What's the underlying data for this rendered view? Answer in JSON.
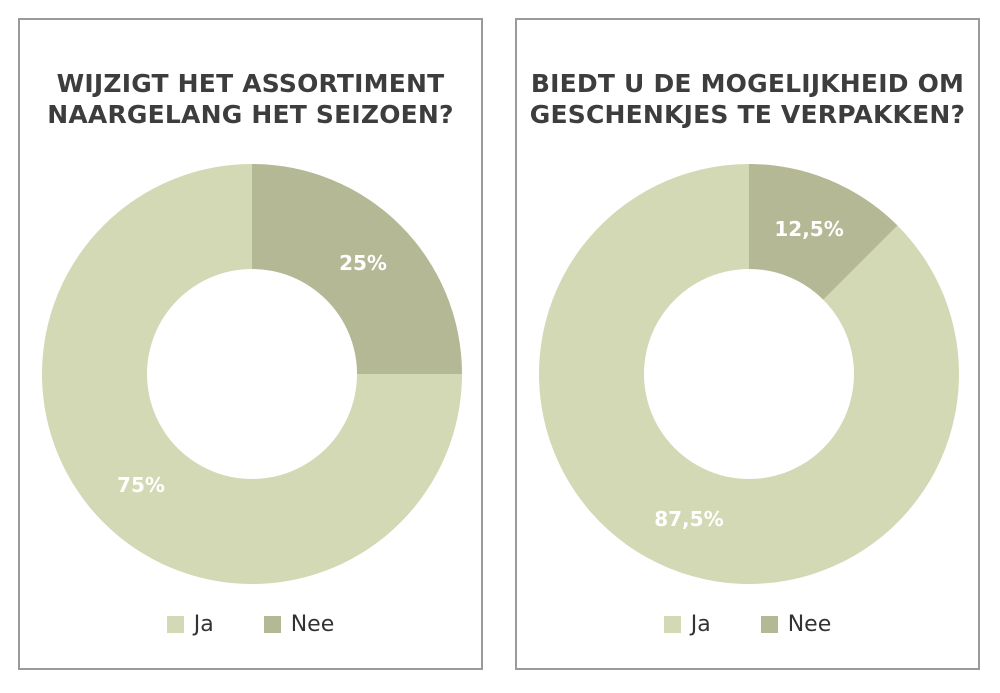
{
  "chart_data": [
    {
      "type": "pie",
      "title": [
        "WIJZIGT HET ASSORTIMENT",
        "NAARGELANG HET SEIZOEN?"
      ],
      "categories": [
        "Ja",
        "Nee"
      ],
      "values": [
        75,
        25
      ],
      "value_labels": [
        "75%",
        "25%"
      ],
      "colors": [
        "#d3d8b5",
        "#b4b895"
      ],
      "legend_position": "bottom",
      "donut": true
    },
    {
      "type": "pie",
      "title": [
        "BIEDT U DE MOGELIJKHEID OM",
        "GESCHENKJES TE VERPAKKEN?"
      ],
      "categories": [
        "Ja",
        "Nee"
      ],
      "values": [
        87.5,
        12.5
      ],
      "value_labels": [
        "87,5%",
        "12,5%"
      ],
      "colors": [
        "#d3d8b5",
        "#b4b895"
      ],
      "legend_position": "bottom",
      "donut": true
    }
  ]
}
